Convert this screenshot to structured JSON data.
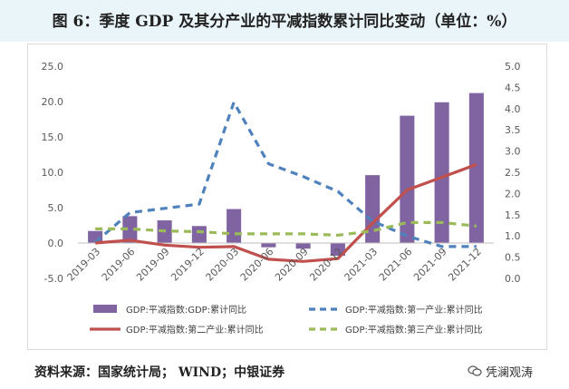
{
  "title": "图 6：季度 GDP 及其分产业的平减指数累计同比变动（单位：%）",
  "source": "资料来源：国家统计局； WIND；中银证券",
  "watermark": {
    "text": "凭澜观涛",
    "icon": "wechat-icon"
  },
  "colors": {
    "bar": "#8064a2",
    "primary_line": "#4f81bd",
    "secondary_line": "#c0504d",
    "tertiary_line": "#9bbb59",
    "header_bg": "#eaf5f9"
  },
  "chart_data": {
    "type": "bar+line",
    "categories": [
      "2019-03",
      "2019-06",
      "2019-09",
      "2019-12",
      "2020-03",
      "2020-06",
      "2020-09",
      "2020-12",
      "2021-03",
      "2021-06",
      "2021-09",
      "2021-12"
    ],
    "left_axis": {
      "min": -5,
      "max": 25,
      "step": 5,
      "tick_labels": [
        "-5.0",
        "0.0",
        "5.0",
        "10.0",
        "15.0",
        "20.0",
        "25.0"
      ]
    },
    "right_axis": {
      "min": 0,
      "max": 5,
      "step": 0.5,
      "tick_labels": [
        "0.0",
        "0.5",
        "1.0",
        "1.5",
        "2.0",
        "2.5",
        "3.0",
        "3.5",
        "4.0",
        "4.5",
        "5.0"
      ]
    },
    "bar_series": {
      "name": "GDP:平减指数:GDP:累计同比",
      "axis": "left",
      "values": [
        1.7,
        3.8,
        3.2,
        2.4,
        4.8,
        -0.6,
        -0.8,
        -1.8,
        9.6,
        18.0,
        19.9,
        21.2
      ]
    },
    "line_series": [
      {
        "name": "GDP:平减指数:第一产业:累计同比",
        "axis": "right",
        "style": "dashed",
        "color": "#4f81bd",
        "values": [
          0.85,
          1.55,
          1.65,
          1.75,
          4.15,
          2.7,
          2.4,
          2.05,
          1.35,
          1.0,
          0.75,
          0.75
        ]
      },
      {
        "name": "GDP:平减指数:第二产业:累计同比",
        "axis": "left",
        "style": "solid",
        "color": "#c0504d",
        "values": [
          0.0,
          0.4,
          -0.3,
          -0.6,
          -0.5,
          -2.3,
          -2.6,
          -2.2,
          2.8,
          7.5,
          9.3,
          11.1
        ]
      },
      {
        "name": "GDP:平减指数:第三产业:累计同比",
        "axis": "left",
        "style": "dashed",
        "color": "#9bbb59",
        "values": [
          2.0,
          2.0,
          1.7,
          1.6,
          1.3,
          1.3,
          1.3,
          1.1,
          1.7,
          2.9,
          2.9,
          2.4
        ]
      }
    ],
    "legend": [
      {
        "label": "GDP:平减指数:GDP:累计同比",
        "kind": "bar"
      },
      {
        "label": "GDP:平减指数:第一产业:累计同比",
        "kind": "dashed"
      },
      {
        "label": "GDP:平减指数:第二产业:累计同比",
        "kind": "solid"
      },
      {
        "label": "GDP:平减指数:第三产业:累计同比",
        "kind": "dashed"
      }
    ],
    "legend_position": "bottom",
    "grid": false
  }
}
